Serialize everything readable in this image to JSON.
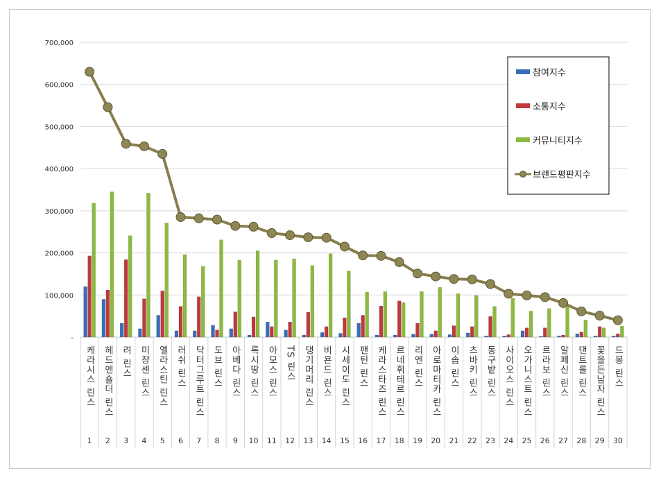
{
  "chart_data": {
    "type": "bar",
    "y_ticks": [
      "700,000",
      "600,000",
      "500,000",
      "400,000",
      "300,000",
      "200,000",
      "100,000",
      "-"
    ],
    "ylim": [
      0,
      700000
    ],
    "grid": true,
    "legend_position": "top-right",
    "ranks": [
      "1",
      "2",
      "3",
      "4",
      "5",
      "6",
      "7",
      "8",
      "9",
      "10",
      "11",
      "12",
      "13",
      "14",
      "15",
      "16",
      "17",
      "18",
      "19",
      "20",
      "21",
      "22",
      "23",
      "24",
      "25",
      "26",
      "27",
      "28",
      "29",
      "30"
    ],
    "categories": [
      "케라시스 린스",
      "헤드앤숄더 린스",
      "려 린스",
      "미쟝센 린스",
      "엘라스틴 린스",
      "러쉬 린스",
      "닥터그루트 린스",
      "도브 린스",
      "아베다 린스",
      "록시땅 린스",
      "아모스 린스",
      "TS 린스",
      "댕기머리 린스",
      "비욘드 린스",
      "시세이도 린스",
      "팬틴 린스",
      "케라스타즈 린스",
      "르네휘테르 린스",
      "리엔 린스",
      "아로마티카 린스",
      "이솝 린스",
      "츠바키 린스",
      "동구밭 린스",
      "사이오스 린스",
      "오가니스트 린스",
      "르라보 린스",
      "알페신 린스",
      "댄트롤 린스",
      "꽃을든남자 린스",
      "드봉 린스"
    ],
    "series": [
      {
        "name": "참여지수",
        "kind": "bar",
        "color": "#3a6db5",
        "values": [
          120000,
          90000,
          33000,
          20000,
          52000,
          15000,
          15000,
          28000,
          20000,
          5000,
          36000,
          17000,
          5000,
          11000,
          9000,
          33000,
          5000,
          5000,
          7000,
          7000,
          6000,
          10000,
          3000,
          3000,
          15000,
          2000,
          3000,
          8000,
          3000,
          3000
        ]
      },
      {
        "name": "소통지수",
        "kind": "bar",
        "color": "#c0393b",
        "values": [
          193000,
          112000,
          184000,
          91000,
          110000,
          73000,
          96000,
          17000,
          60000,
          48000,
          25000,
          36000,
          59000,
          25000,
          46000,
          52000,
          74000,
          86000,
          33000,
          15000,
          27000,
          25000,
          49000,
          6000,
          22000,
          22000,
          5000,
          12000,
          25000,
          8000
        ]
      },
      {
        "name": "커뮤니티지수",
        "kind": "bar",
        "color": "#8cba3f",
        "values": [
          318000,
          345000,
          241000,
          342000,
          271000,
          196000,
          168000,
          231000,
          183000,
          205000,
          183000,
          186000,
          170000,
          198000,
          157000,
          107000,
          108000,
          82000,
          108000,
          118000,
          103000,
          99000,
          73000,
          92000,
          62000,
          68000,
          72000,
          41000,
          22000,
          26000
        ]
      },
      {
        "name": "브랜드평판지수",
        "kind": "line",
        "color": "#877e4c",
        "values": [
          630000,
          546000,
          459000,
          453000,
          435000,
          285000,
          282000,
          279000,
          264000,
          262000,
          247000,
          242000,
          237000,
          236000,
          215000,
          194000,
          193000,
          178000,
          151000,
          144000,
          138000,
          137000,
          126000,
          103000,
          99000,
          95000,
          81000,
          61000,
          51000,
          40000
        ]
      }
    ]
  }
}
